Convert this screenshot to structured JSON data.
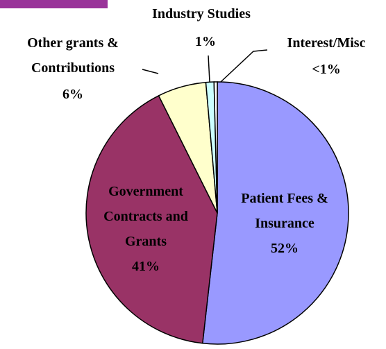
{
  "chart_data": {
    "type": "pie",
    "categories": [
      "Patient Fees &\nInsurance",
      "Government\nContracts and\nGrants",
      "Other grants &\nContributions",
      "Industry Studies",
      "Interest/Misc"
    ],
    "values": [
      52,
      41,
      6,
      1,
      0.4
    ],
    "value_labels": [
      "52%",
      "41%",
      "6%",
      "1%",
      "<1%"
    ],
    "colors": [
      "#9999ff",
      "#993366",
      "#ffffcc",
      "#ccffff",
      "#ffffff"
    ]
  }
}
